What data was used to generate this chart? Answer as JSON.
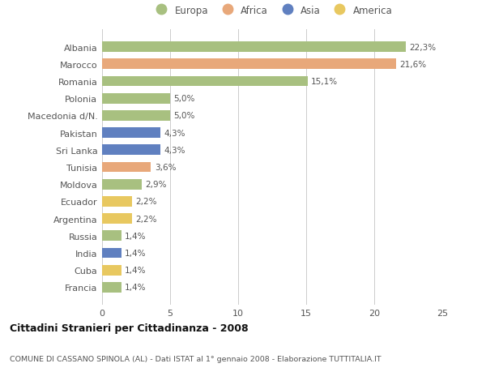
{
  "categories": [
    "Albania",
    "Marocco",
    "Romania",
    "Polonia",
    "Macedonia d/N.",
    "Pakistan",
    "Sri Lanka",
    "Tunisia",
    "Moldova",
    "Ecuador",
    "Argentina",
    "Russia",
    "India",
    "Cuba",
    "Francia"
  ],
  "values": [
    22.3,
    21.6,
    15.1,
    5.0,
    5.0,
    4.3,
    4.3,
    3.6,
    2.9,
    2.2,
    2.2,
    1.4,
    1.4,
    1.4,
    1.4
  ],
  "labels": [
    "22,3%",
    "21,6%",
    "15,1%",
    "5,0%",
    "5,0%",
    "4,3%",
    "4,3%",
    "3,6%",
    "2,9%",
    "2,2%",
    "2,2%",
    "1,4%",
    "1,4%",
    "1,4%",
    "1,4%"
  ],
  "continent": [
    "Europa",
    "Africa",
    "Europa",
    "Europa",
    "Europa",
    "Asia",
    "Asia",
    "Africa",
    "Europa",
    "America",
    "America",
    "Europa",
    "Asia",
    "America",
    "Europa"
  ],
  "colors": {
    "Europa": "#a8c080",
    "Africa": "#e8a87a",
    "Asia": "#6080c0",
    "America": "#e8c860"
  },
  "xlim": [
    0,
    25
  ],
  "xticks": [
    0,
    5,
    10,
    15,
    20,
    25
  ],
  "title": "Cittadini Stranieri per Cittadinanza - 2008",
  "subtitle": "COMUNE DI CASSANO SPINOLA (AL) - Dati ISTAT al 1° gennaio 2008 - Elaborazione TUTTITALIA.IT",
  "background_color": "#ffffff",
  "grid_color": "#cccccc",
  "legend_order": [
    "Europa",
    "Africa",
    "Asia",
    "America"
  ]
}
